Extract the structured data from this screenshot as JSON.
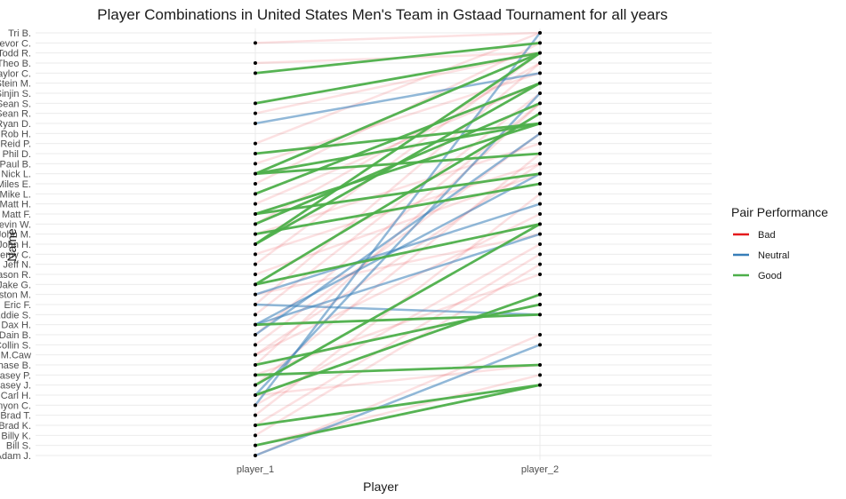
{
  "chart_data": {
    "type": "line",
    "title": "Player Combinations in United States Men's Team in Gstaad Tournament for all years",
    "xlabel": "Player",
    "ylabel": "Name",
    "x_categories": [
      "player_1",
      "player_2"
    ],
    "y_categories": [
      "Adam J.",
      "Bill S.",
      "Billy K.",
      "Brad K.",
      "Brad T.",
      "Canyon C.",
      "Carl H.",
      "Casey J.",
      "Casey P.",
      "Chase B.",
      "Chip M.Caw",
      "Collin S.",
      "Dain B.",
      "Dax H.",
      "Eddie S.",
      "Eric F.",
      "Gaston M.",
      "Jake G.",
      "Jason R.",
      "Jeff N.",
      "Jeremy C.",
      "John H.",
      "John M.",
      "Kevin W.",
      "Matt F.",
      "Matt H.",
      "Mike L.",
      "Miles E.",
      "Nick L.",
      "Paul B.",
      "Phil D.",
      "Reid P.",
      "Rob H.",
      "Ryan D.",
      "Sean R.",
      "Sean S.",
      "Sinjin S.",
      "Stein M.",
      "Taylor C.",
      "Theo B.",
      "Todd R.",
      "Trevor C.",
      "Tri B."
    ],
    "legend": {
      "title": "Pair Performance",
      "position": "right",
      "entries": [
        {
          "label": "Bad",
          "color": "#e41a1c"
        },
        {
          "label": "Neutral",
          "color": "#377eb8"
        },
        {
          "label": "Good",
          "color": "#4daf4a"
        }
      ]
    },
    "grid": true,
    "pairs": [
      {
        "player_1": "Adam J.",
        "player_2": "Collin S.",
        "performance": "Neutral"
      },
      {
        "player_1": "Bill S.",
        "player_2": "Casey J.",
        "performance": "Good"
      },
      {
        "player_1": "Brad K.",
        "player_2": "Casey J.",
        "performance": "Good"
      },
      {
        "player_1": "Carl H.",
        "player_2": "Sinjin S.",
        "performance": "Neutral"
      },
      {
        "player_1": "Carl H.",
        "player_2": "Gaston M.",
        "performance": "Good"
      },
      {
        "player_1": "Casey J.",
        "player_2": "Kevin W.",
        "performance": "Good"
      },
      {
        "player_1": "Casey P.",
        "player_2": "Chase B.",
        "performance": "Good"
      },
      {
        "player_1": "Canyon C.",
        "player_2": "Tri B.",
        "performance": "Neutral"
      },
      {
        "player_1": "Dain B.",
        "player_2": "Rob H.",
        "performance": "Neutral"
      },
      {
        "player_1": "Dax H.",
        "player_2": "John M.",
        "performance": "Neutral"
      },
      {
        "player_1": "Dax H.",
        "player_2": "Eddie S.",
        "performance": "Good"
      },
      {
        "player_1": "Dax H.",
        "player_2": "Nick L.",
        "performance": "Neutral"
      },
      {
        "player_1": "Eric F.",
        "player_2": "Eddie S.",
        "performance": "Neutral"
      },
      {
        "player_1": "Gaston M.",
        "player_2": "Matt H.",
        "performance": "Neutral"
      },
      {
        "player_1": "Jake G.",
        "player_2": "Sean R.",
        "performance": "Good"
      },
      {
        "player_1": "Jake G.",
        "player_2": "Kevin W.",
        "performance": "Good"
      },
      {
        "player_1": "John H.",
        "player_2": "Stein M.",
        "performance": "Good"
      },
      {
        "player_1": "John H.",
        "player_2": "Todd R.",
        "performance": "Good"
      },
      {
        "player_1": "John M.",
        "player_2": "Miles E.",
        "performance": "Good"
      },
      {
        "player_1": "Kevin W.",
        "player_2": "Sean S.",
        "performance": "Good"
      },
      {
        "player_1": "Matt F.",
        "player_2": "Nick L.",
        "performance": "Good"
      },
      {
        "player_1": "Matt F.",
        "player_2": "Ryan D.",
        "performance": "Good"
      },
      {
        "player_1": "Mike L.",
        "player_2": "Stein M.",
        "performance": "Good"
      },
      {
        "player_1": "Nick L.",
        "player_2": "Todd R.",
        "performance": "Good"
      },
      {
        "player_1": "Nick L.",
        "player_2": "Phil D.",
        "performance": "Good"
      },
      {
        "player_1": "Nick L.",
        "player_2": "Ryan D.",
        "performance": "Good"
      },
      {
        "player_1": "Phil D.",
        "player_2": "Ryan D.",
        "performance": "Good"
      },
      {
        "player_1": "Ryan D.",
        "player_2": "Taylor C.",
        "performance": "Neutral"
      },
      {
        "player_1": "Sean S.",
        "player_2": "Todd R.",
        "performance": "Good"
      },
      {
        "player_1": "Taylor C.",
        "player_2": "Trevor C.",
        "performance": "Good"
      },
      {
        "player_1": "Chase B.",
        "player_2": "Eric F.",
        "performance": "Good"
      },
      {
        "player_1": "Adam J.",
        "player_2": "Dain B.",
        "performance": "Bad"
      },
      {
        "player_1": "Bill S.",
        "player_2": "Casey P.",
        "performance": "Bad"
      },
      {
        "player_1": "Billy K.",
        "player_2": "Jeff N.",
        "performance": "Bad"
      },
      {
        "player_1": "Brad T.",
        "player_2": "Mike L.",
        "performance": "Bad"
      },
      {
        "player_1": "Canyon C.",
        "player_2": "John H.",
        "performance": "Bad"
      },
      {
        "player_1": "Casey J.",
        "player_2": "Phil D.",
        "performance": "Bad"
      },
      {
        "player_1": "Casey P.",
        "player_2": "Jason R.",
        "performance": "Bad"
      },
      {
        "player_1": "Chase B.",
        "player_2": "Sean S.",
        "performance": "Bad"
      },
      {
        "player_1": "Chip M.Caw",
        "player_2": "Paul B.",
        "performance": "Bad"
      },
      {
        "player_1": "Chip M.Caw",
        "player_2": "Matt F.",
        "performance": "Bad"
      },
      {
        "player_1": "Collin S.",
        "player_2": "Rob H.",
        "performance": "Bad"
      },
      {
        "player_1": "Eddie S.",
        "player_2": "Sinjin S.",
        "performance": "Bad"
      },
      {
        "player_1": "Eric F.",
        "player_2": "Theo B.",
        "performance": "Bad"
      },
      {
        "player_1": "Gaston M.",
        "player_2": "John M.",
        "performance": "Bad"
      },
      {
        "player_1": "Jason R.",
        "player_2": "Nick L.",
        "performance": "Bad"
      },
      {
        "player_1": "Jeff N.",
        "player_2": "Todd R.",
        "performance": "Bad"
      },
      {
        "player_1": "Jeremy C.",
        "player_2": "Paul B.",
        "performance": "Bad"
      },
      {
        "player_1": "John M.",
        "player_2": "Reid P.",
        "performance": "Bad"
      },
      {
        "player_1": "Kevin W.",
        "player_2": "Theo B.",
        "performance": "Bad"
      },
      {
        "player_1": "Matt H.",
        "player_2": "Stein M.",
        "performance": "Bad"
      },
      {
        "player_1": "Miles E.",
        "player_2": "Trevor C.",
        "performance": "Bad"
      },
      {
        "player_1": "Paul B.",
        "player_2": "Taylor C.",
        "performance": "Bad"
      },
      {
        "player_1": "Reid P.",
        "player_2": "Tri B.",
        "performance": "Bad"
      },
      {
        "player_1": "Sean R.",
        "player_2": "Todd R.",
        "performance": "Bad"
      },
      {
        "player_1": "Theo B.",
        "player_2": "Todd R.",
        "performance": "Bad"
      },
      {
        "player_1": "Trevor C.",
        "player_2": "Tri B.",
        "performance": "Bad"
      },
      {
        "player_1": "Brad K.",
        "player_2": "Jeremy C.",
        "performance": "Bad"
      },
      {
        "player_1": "Dain B.",
        "player_2": "Sean S.",
        "performance": "Bad"
      },
      {
        "player_1": "Carl H.",
        "player_2": "Chase B.",
        "performance": "Bad"
      }
    ]
  }
}
